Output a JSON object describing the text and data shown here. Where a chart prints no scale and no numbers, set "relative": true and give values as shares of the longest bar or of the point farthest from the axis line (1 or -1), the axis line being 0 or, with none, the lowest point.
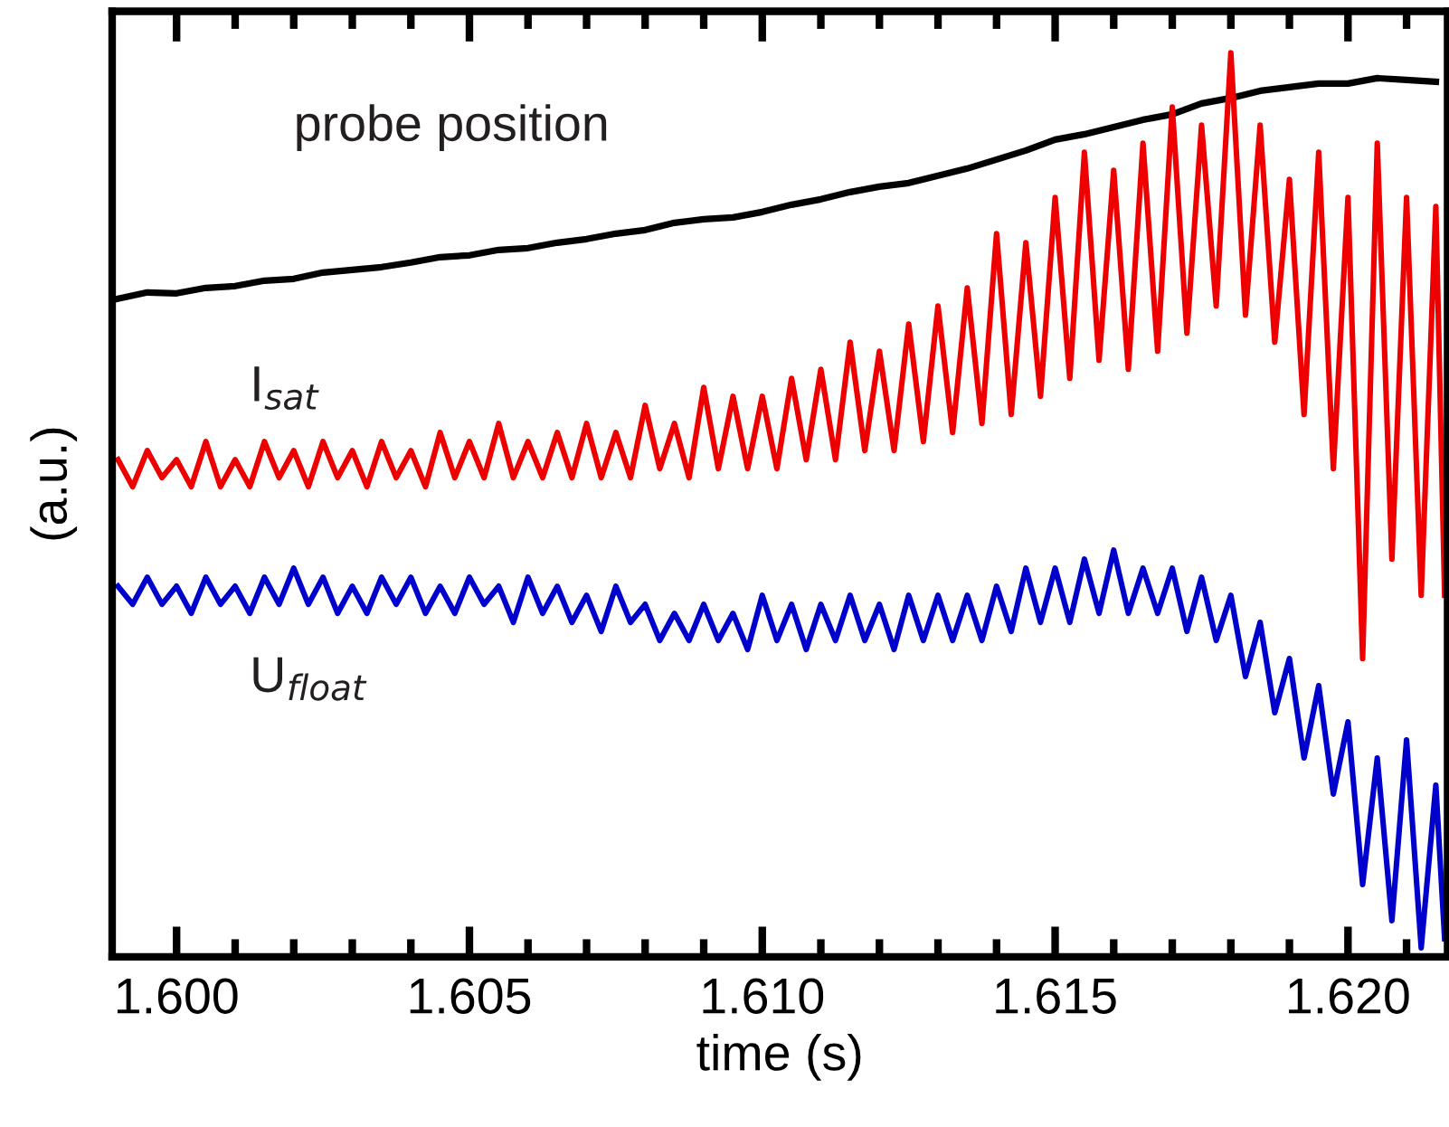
{
  "chart_data": {
    "type": "line",
    "relative": true,
    "xlabel": "time (s)",
    "ylabel": "(a.u.)",
    "tick_labels": "x",
    "legend": false,
    "grid": false,
    "marker": "none",
    "line_style": "solid",
    "xlim": [
      1.5989,
      1.6217
    ],
    "xticks": [
      {
        "value": 1.6,
        "label": "1.600"
      },
      {
        "value": 1.601,
        "label": null
      },
      {
        "value": 1.602,
        "label": null
      },
      {
        "value": 1.603,
        "label": null
      },
      {
        "value": 1.604,
        "label": null
      },
      {
        "value": 1.605,
        "label": "1.605"
      },
      {
        "value": 1.606,
        "label": null
      },
      {
        "value": 1.607,
        "label": null
      },
      {
        "value": 1.608,
        "label": null
      },
      {
        "value": 1.609,
        "label": null
      },
      {
        "value": 1.61,
        "label": "1.610"
      },
      {
        "value": 1.611,
        "label": null
      },
      {
        "value": 1.612,
        "label": null
      },
      {
        "value": 1.613,
        "label": null
      },
      {
        "value": 1.614,
        "label": null
      },
      {
        "value": 1.615,
        "label": "1.615"
      },
      {
        "value": 1.616,
        "label": null
      },
      {
        "value": 1.617,
        "label": null
      },
      {
        "value": 1.618,
        "label": null
      },
      {
        "value": 1.619,
        "label": null
      },
      {
        "value": 1.62,
        "label": "1.620"
      },
      {
        "value": 1.621,
        "label": null
      }
    ],
    "series": [
      {
        "name": "probe position",
        "color": "#000000",
        "x": [
          1.599,
          1.5995,
          1.6,
          1.6005,
          1.601,
          1.6015,
          1.602,
          1.6025,
          1.603,
          1.6035,
          1.604,
          1.6045,
          1.605,
          1.6055,
          1.606,
          1.6065,
          1.607,
          1.6075,
          1.608,
          1.6085,
          1.609,
          1.6095,
          1.61,
          1.6105,
          1.611,
          1.6115,
          1.612,
          1.6125,
          1.613,
          1.6135,
          1.614,
          1.6145,
          1.615,
          1.6155,
          1.616,
          1.6165,
          1.617,
          1.6175,
          1.618,
          1.6185,
          1.619,
          1.6195,
          1.62,
          1.6205,
          1.621,
          1.6215
        ],
        "values": [
          0.728,
          0.735,
          0.734,
          0.74,
          0.742,
          0.748,
          0.75,
          0.757,
          0.76,
          0.763,
          0.768,
          0.774,
          0.776,
          0.782,
          0.784,
          0.79,
          0.794,
          0.8,
          0.804,
          0.812,
          0.816,
          0.818,
          0.824,
          0.832,
          0.838,
          0.846,
          0.852,
          0.856,
          0.864,
          0.872,
          0.882,
          0.892,
          0.904,
          0.91,
          0.918,
          0.926,
          0.932,
          0.944,
          0.95,
          0.958,
          0.962,
          0.966,
          0.966,
          0.972,
          0.97,
          0.968
        ]
      },
      {
        "name": "I$_{sat}$",
        "color": "#ee0000",
        "x": [
          1.599,
          1.59925,
          1.5995,
          1.59975,
          1.6,
          1.60025,
          1.6005,
          1.60075,
          1.601,
          1.60125,
          1.6015,
          1.60175,
          1.602,
          1.60225,
          1.6025,
          1.60275,
          1.603,
          1.60325,
          1.6035,
          1.60375,
          1.604,
          1.60425,
          1.6045,
          1.60475,
          1.605,
          1.60525,
          1.6055,
          1.60575,
          1.606,
          1.60625,
          1.6065,
          1.60675,
          1.607,
          1.60725,
          1.6075,
          1.60775,
          1.608,
          1.60825,
          1.6085,
          1.60875,
          1.609,
          1.60925,
          1.6095,
          1.60975,
          1.61,
          1.61025,
          1.6105,
          1.61075,
          1.611,
          1.61125,
          1.6115,
          1.61175,
          1.612,
          1.61225,
          1.6125,
          1.61275,
          1.613,
          1.61325,
          1.6135,
          1.61375,
          1.614,
          1.61425,
          1.6145,
          1.61475,
          1.615,
          1.61525,
          1.6155,
          1.61575,
          1.616,
          1.61625,
          1.6165,
          1.61675,
          1.617,
          1.61725,
          1.6175,
          1.61775,
          1.618,
          1.61825,
          1.6185,
          1.61875,
          1.619,
          1.61925,
          1.6195,
          1.61975,
          1.62,
          1.62025,
          1.6205,
          1.62075,
          1.621,
          1.62125,
          1.6215,
          1.62165
        ],
        "values": [
          0.55,
          0.52,
          0.56,
          0.53,
          0.55,
          0.52,
          0.57,
          0.52,
          0.55,
          0.52,
          0.57,
          0.53,
          0.56,
          0.52,
          0.57,
          0.53,
          0.56,
          0.52,
          0.57,
          0.53,
          0.56,
          0.52,
          0.58,
          0.53,
          0.57,
          0.53,
          0.59,
          0.53,
          0.57,
          0.53,
          0.58,
          0.53,
          0.59,
          0.53,
          0.58,
          0.53,
          0.61,
          0.54,
          0.59,
          0.53,
          0.63,
          0.54,
          0.62,
          0.54,
          0.62,
          0.54,
          0.64,
          0.55,
          0.65,
          0.55,
          0.68,
          0.56,
          0.67,
          0.56,
          0.7,
          0.57,
          0.72,
          0.58,
          0.74,
          0.59,
          0.8,
          0.6,
          0.79,
          0.62,
          0.84,
          0.64,
          0.89,
          0.66,
          0.87,
          0.65,
          0.9,
          0.67,
          0.94,
          0.69,
          0.92,
          0.72,
          1.0,
          0.71,
          0.92,
          0.68,
          0.86,
          0.6,
          0.89,
          0.54,
          0.84,
          0.33,
          0.9,
          0.44,
          0.84,
          0.4,
          0.83,
          0.4
        ]
      },
      {
        "name": "U$_{float}$",
        "color": "#0000cc",
        "x": [
          1.599,
          1.59925,
          1.5995,
          1.59975,
          1.6,
          1.60025,
          1.6005,
          1.60075,
          1.601,
          1.60125,
          1.6015,
          1.60175,
          1.602,
          1.60225,
          1.6025,
          1.60275,
          1.603,
          1.60325,
          1.6035,
          1.60375,
          1.604,
          1.60425,
          1.6045,
          1.60475,
          1.605,
          1.60525,
          1.6055,
          1.60575,
          1.606,
          1.60625,
          1.6065,
          1.60675,
          1.607,
          1.60725,
          1.6075,
          1.60775,
          1.608,
          1.60825,
          1.6085,
          1.60875,
          1.609,
          1.60925,
          1.6095,
          1.60975,
          1.61,
          1.61025,
          1.6105,
          1.61075,
          1.611,
          1.61125,
          1.6115,
          1.61175,
          1.612,
          1.61225,
          1.6125,
          1.61275,
          1.613,
          1.61325,
          1.6135,
          1.61375,
          1.614,
          1.61425,
          1.6145,
          1.61475,
          1.615,
          1.61525,
          1.6155,
          1.61575,
          1.616,
          1.61625,
          1.6165,
          1.61675,
          1.617,
          1.61725,
          1.6175,
          1.61775,
          1.618,
          1.61825,
          1.6185,
          1.61875,
          1.619,
          1.61925,
          1.6195,
          1.61975,
          1.62,
          1.62025,
          1.6205,
          1.62075,
          1.621,
          1.62125,
          1.6215,
          1.62165
        ],
        "values": [
          0.41,
          0.39,
          0.42,
          0.39,
          0.41,
          0.38,
          0.42,
          0.39,
          0.41,
          0.38,
          0.42,
          0.39,
          0.43,
          0.39,
          0.42,
          0.38,
          0.41,
          0.38,
          0.42,
          0.39,
          0.42,
          0.38,
          0.41,
          0.38,
          0.42,
          0.39,
          0.41,
          0.37,
          0.42,
          0.38,
          0.41,
          0.37,
          0.4,
          0.36,
          0.41,
          0.37,
          0.39,
          0.35,
          0.38,
          0.35,
          0.39,
          0.35,
          0.38,
          0.34,
          0.4,
          0.35,
          0.39,
          0.34,
          0.39,
          0.35,
          0.4,
          0.35,
          0.39,
          0.34,
          0.4,
          0.35,
          0.4,
          0.35,
          0.4,
          0.35,
          0.41,
          0.36,
          0.43,
          0.37,
          0.43,
          0.37,
          0.44,
          0.38,
          0.45,
          0.38,
          0.43,
          0.38,
          0.43,
          0.36,
          0.42,
          0.35,
          0.4,
          0.31,
          0.37,
          0.27,
          0.33,
          0.22,
          0.3,
          0.18,
          0.26,
          0.08,
          0.22,
          0.04,
          0.24,
          0.01,
          0.19,
          0.02
        ]
      }
    ]
  }
}
